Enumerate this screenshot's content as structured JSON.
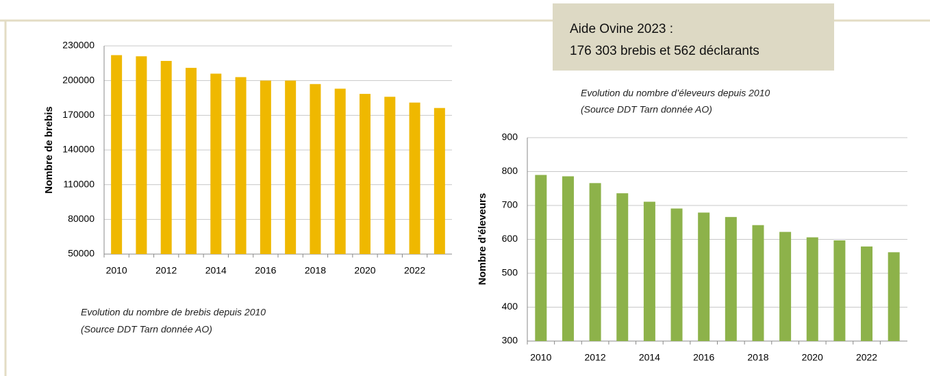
{
  "info_box": {
    "lines": [
      "Aide Ovine 2023 :",
      "176 303 brebis et 562 déclarants"
    ]
  },
  "chart_data": [
    {
      "type": "bar",
      "y_label": "Nombre de brebis",
      "caption": [
        "Evolution du nombre de brebis depuis 2010",
        "(Source DDT Tarn donnée AO)"
      ],
      "categories": [
        "2010",
        null,
        "2012",
        null,
        "2014",
        null,
        "2016",
        null,
        "2018",
        null,
        "2020",
        null,
        "2022",
        null
      ],
      "values": [
        222000,
        221000,
        217000,
        211000,
        206000,
        203000,
        200000,
        200000,
        197000,
        193000,
        188500,
        186000,
        181000,
        176303
      ],
      "color": "#efb800",
      "ylim": [
        50000,
        230000
      ],
      "yticks": [
        50000,
        80000,
        110000,
        140000,
        170000,
        200000,
        230000
      ],
      "grid": true
    },
    {
      "type": "bar",
      "y_label": "Nombre d'éleveurs",
      "caption": [
        "Evolution du nombre d’éleveurs depuis 2010",
        "(Source DDT Tarn donnée AO)"
      ],
      "categories": [
        "2010",
        null,
        "2012",
        null,
        "2014",
        null,
        "2016",
        null,
        "2018",
        null,
        "2020",
        null,
        "2022",
        null
      ],
      "values": [
        790,
        786,
        766,
        736,
        711,
        691,
        679,
        666,
        642,
        622,
        606,
        597,
        579,
        562
      ],
      "color": "#8db24a",
      "ylim": [
        300,
        900
      ],
      "yticks": [
        300,
        400,
        500,
        600,
        700,
        800,
        900
      ],
      "grid": true
    }
  ]
}
